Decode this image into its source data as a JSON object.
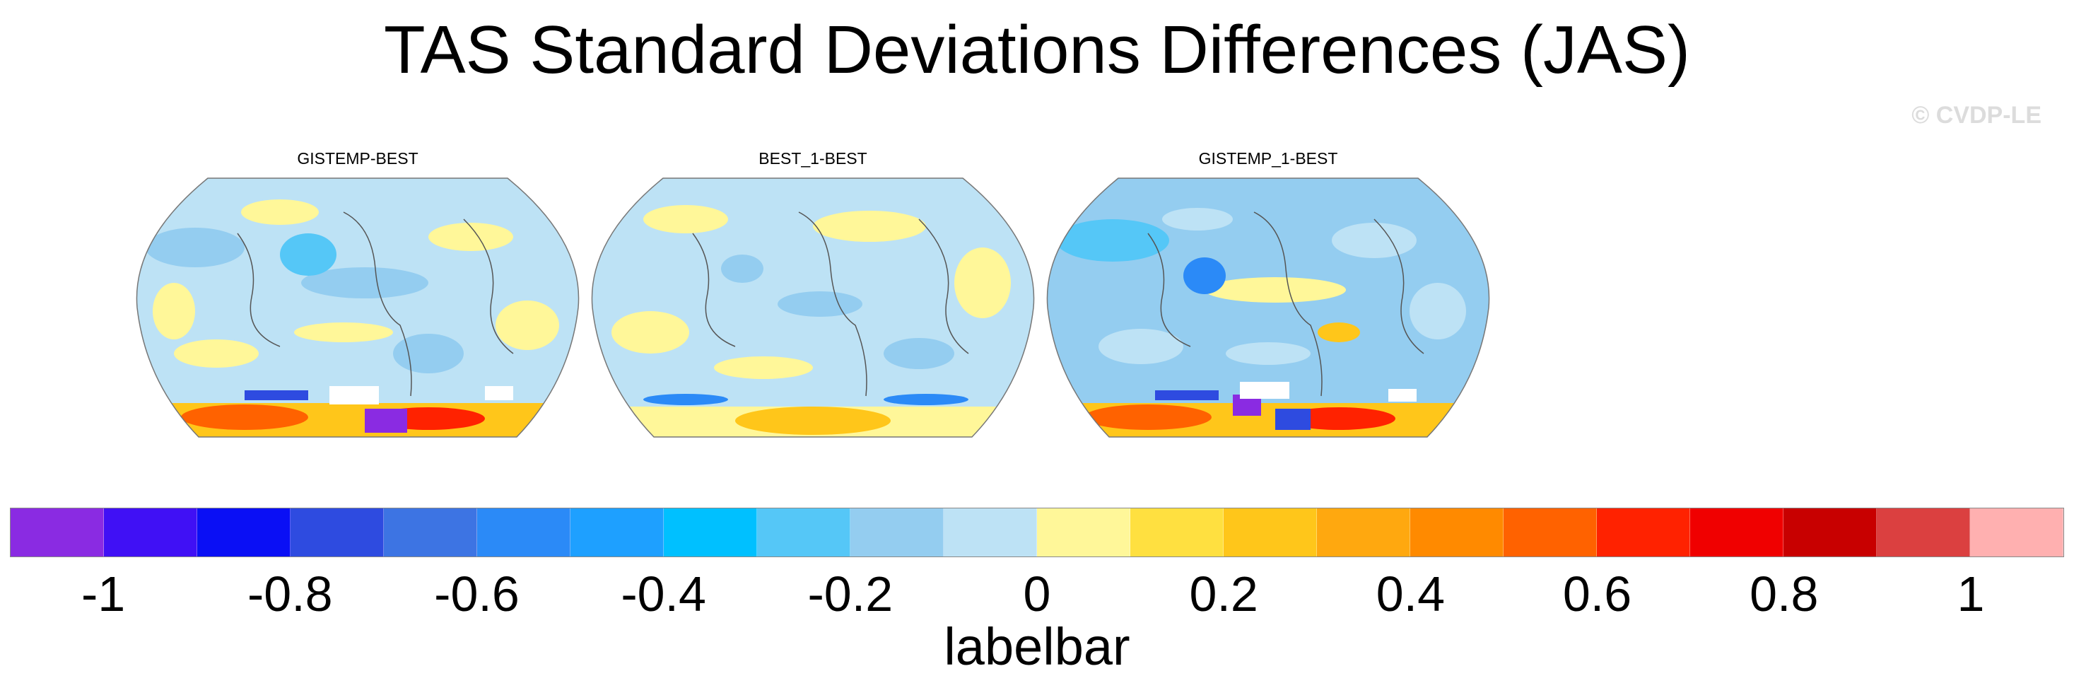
{
  "title": "TAS Standard Deviations Differences (JAS)",
  "watermark": "© CVDP-LE",
  "panels": [
    {
      "title": "GISTEMP-BEST"
    },
    {
      "title": "BEST_1-BEST"
    },
    {
      "title": "GISTEMP_1-BEST"
    }
  ],
  "colorbar": {
    "label": "labelbar",
    "colors": [
      "#8a2be2",
      "#4010f5",
      "#0a0ff5",
      "#2e4be0",
      "#3d74e3",
      "#2b8af7",
      "#1ea0ff",
      "#00c0ff",
      "#55c7f7",
      "#94cdf0",
      "#bde2f5",
      "#fff799",
      "#ffe040",
      "#ffc61a",
      "#ffa80f",
      "#ff8a00",
      "#ff6200",
      "#ff2200",
      "#f00000",
      "#c80000",
      "#db4040",
      "#ffb0b0"
    ],
    "tick_labels": [
      "-1",
      "-0.8",
      "-0.6",
      "-0.4",
      "-0.2",
      "0",
      "0.2",
      "0.4",
      "0.6",
      "0.8",
      "1"
    ]
  }
}
